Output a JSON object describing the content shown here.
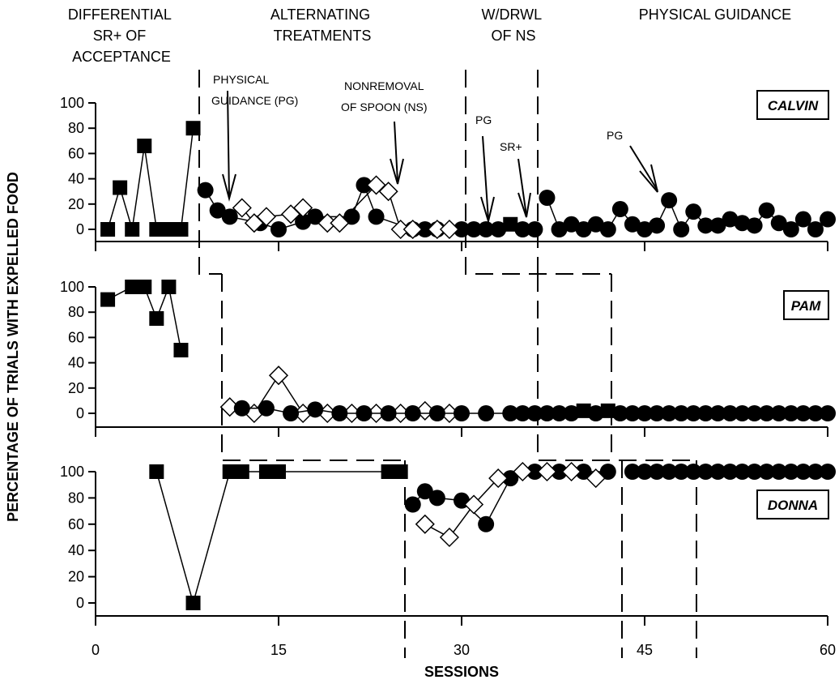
{
  "phases": [
    {
      "id": "differential",
      "lines": [
        "DIFFERENTIAL",
        "SR+ OF",
        "ACCEPTANCE"
      ]
    },
    {
      "id": "alternating",
      "lines": [
        "ALTERNATING",
        "TREATMENTS"
      ]
    },
    {
      "id": "wdrwl",
      "lines": [
        "W/DRWL",
        "OF NS"
      ]
    },
    {
      "id": "physical",
      "lines": [
        "PHYSICAL GUIDANCE"
      ]
    }
  ],
  "chart_data": {
    "type": "scatter",
    "xlabel": "SESSIONS",
    "ylabel": "PERCENTAGE OF TRIALS WITH EXPELLED FOOD",
    "x_ticks": [
      0,
      15,
      30,
      45,
      60
    ],
    "y_ticks": [
      0,
      20,
      40,
      60,
      80,
      100
    ],
    "xlim": [
      0,
      60
    ],
    "ylim": [
      0,
      100
    ],
    "grid": false,
    "panels": [
      {
        "id": "calvin",
        "name": "CALVIN",
        "series": [
          {
            "marker": "filled-square",
            "x": [
              1,
              2,
              3,
              4,
              5,
              6,
              7,
              8
            ],
            "y": [
              0,
              33,
              0,
              66,
              0,
              0,
              0,
              80
            ]
          },
          {
            "marker": "filled-circle",
            "x": [
              9,
              10,
              11,
              13.5,
              15,
              17,
              18,
              21,
              22,
              23,
              26,
              27,
              28,
              30
            ],
            "y": [
              31,
              15,
              10,
              5,
              0,
              6,
              10,
              10,
              35,
              10,
              0,
              0,
              0,
              0
            ]
          },
          {
            "marker": "open-diamond",
            "x": [
              12,
              13,
              14,
              16,
              17,
              19,
              20,
              23,
              24,
              25,
              26,
              28,
              29
            ],
            "y": [
              17,
              5,
              10,
              12,
              17,
              5,
              5,
              35,
              30,
              0,
              0,
              0,
              0
            ]
          },
          {
            "marker": "filled-circle",
            "x": [
              31,
              32,
              33
            ],
            "y": [
              0,
              0,
              0
            ]
          },
          {
            "marker": "filled-square",
            "x": [
              34
            ],
            "y": [
              4
            ]
          },
          {
            "marker": "filled-circle",
            "x": [
              35,
              36
            ],
            "y": [
              0,
              0
            ]
          },
          {
            "marker": "filled-circle",
            "x": [
              37,
              38,
              39,
              40,
              41,
              42,
              43,
              44,
              45,
              46,
              47,
              48,
              49,
              50,
              51,
              52,
              53,
              54,
              55,
              56,
              57,
              58,
              59,
              60
            ],
            "y": [
              25,
              0,
              4,
              0,
              4,
              0,
              16,
              4,
              0,
              3,
              23,
              0,
              14,
              3,
              3,
              8,
              5,
              3,
              15,
              5,
              0,
              8,
              0,
              8
            ]
          }
        ],
        "annotations": [
          {
            "lines": [
              "PHYSICAL",
              "GUIDANCE (PG)"
            ]
          },
          {
            "lines": [
              "NONREMOVAL",
              "OF SPOON  (NS)"
            ]
          },
          {
            "lines": [
              "PG"
            ]
          },
          {
            "lines": [
              "SR+"
            ]
          },
          {
            "lines": [
              "PG"
            ]
          }
        ]
      },
      {
        "id": "pam",
        "name": "PAM",
        "series": [
          {
            "marker": "filled-square",
            "x": [
              1,
              3,
              4,
              5,
              6,
              7
            ],
            "y": [
              90,
              100,
              100,
              75,
              100,
              50
            ]
          },
          {
            "marker": "open-diamond",
            "x": [
              11,
              13,
              15,
              17,
              19,
              21,
              23,
              25,
              27,
              29
            ],
            "y": [
              5,
              0,
              30,
              0,
              0,
              0,
              0,
              0,
              2,
              0
            ]
          },
          {
            "marker": "filled-circle",
            "x": [
              12,
              14,
              16,
              18,
              20,
              22,
              24,
              26,
              28,
              30,
              32,
              34,
              35,
              36
            ],
            "y": [
              4,
              4,
              0,
              3,
              0,
              0,
              0,
              0,
              0,
              0,
              0,
              0,
              0,
              0
            ]
          },
          {
            "marker": "filled-circle",
            "x": [
              37,
              38,
              39
            ],
            "y": [
              0,
              0,
              0
            ]
          },
          {
            "marker": "filled-square",
            "x": [
              40
            ],
            "y": [
              2
            ]
          },
          {
            "marker": "filled-circle",
            "x": [
              41
            ],
            "y": [
              0
            ]
          },
          {
            "marker": "filled-square",
            "x": [
              42
            ],
            "y": [
              2
            ]
          },
          {
            "marker": "filled-circle",
            "x": [
              43,
              44,
              45,
              46,
              47,
              48,
              49,
              50,
              51,
              52,
              53,
              54,
              55,
              56,
              57,
              58,
              59,
              60
            ],
            "y": [
              0,
              0,
              0,
              0,
              0,
              0,
              0,
              0,
              0,
              0,
              0,
              0,
              0,
              0,
              0,
              0,
              0,
              0
            ]
          }
        ]
      },
      {
        "id": "donna",
        "name": "DONNA",
        "series": [
          {
            "marker": "filled-square",
            "x": [
              5,
              8,
              11,
              12,
              14,
              15,
              24,
              25
            ],
            "y": [
              100,
              0,
              100,
              100,
              100,
              100,
              100,
              100
            ]
          },
          {
            "marker": "filled-circle",
            "x": [
              26,
              27,
              28,
              30,
              32,
              34,
              36,
              38,
              40,
              42
            ],
            "y": [
              75,
              85,
              80,
              78,
              60,
              95,
              100,
              100,
              100,
              100
            ]
          },
          {
            "marker": "open-diamond",
            "x": [
              27,
              29,
              31,
              33,
              35,
              37,
              39,
              41
            ],
            "y": [
              60,
              50,
              75,
              95,
              100,
              100,
              100,
              95
            ]
          },
          {
            "marker": "filled-circle",
            "x": [
              44,
              45,
              46,
              47,
              48,
              49,
              50,
              51,
              52,
              53,
              54,
              55,
              56,
              57,
              58,
              59,
              60
            ],
            "y": [
              100,
              100,
              100,
              100,
              100,
              100,
              100,
              100,
              100,
              100,
              100,
              100,
              100,
              100,
              100,
              100,
              100
            ]
          }
        ]
      }
    ]
  }
}
